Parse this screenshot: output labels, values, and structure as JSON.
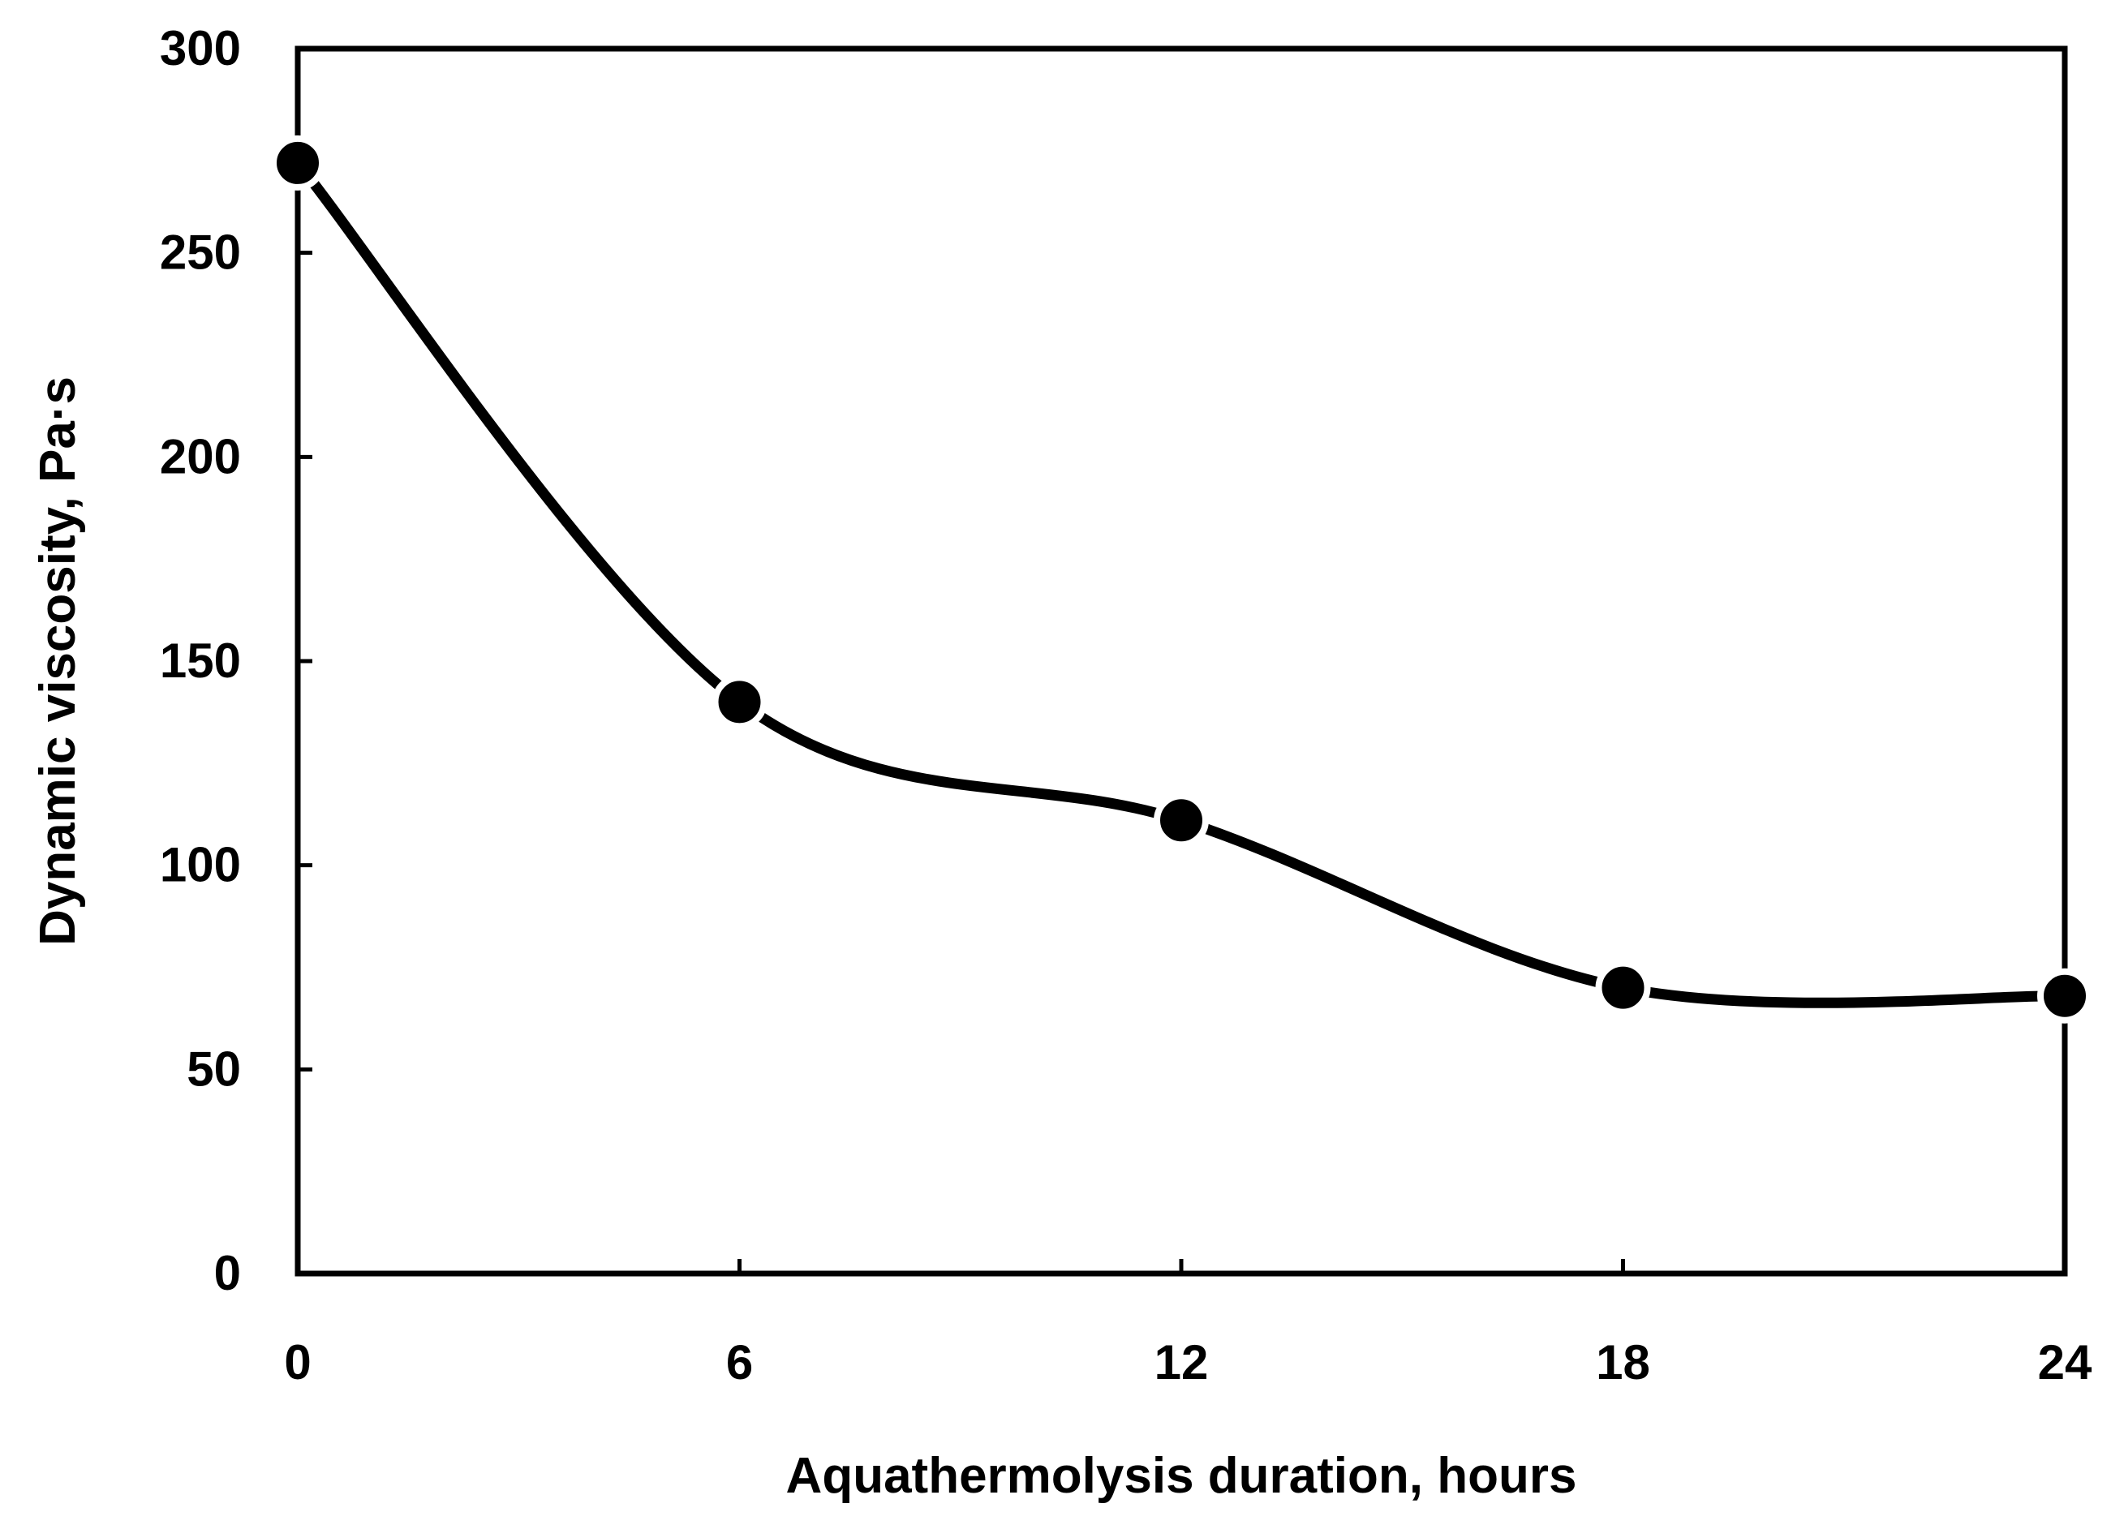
{
  "chart_data": {
    "type": "line",
    "title": "",
    "xlabel": "Aquathermolysis duration, hours",
    "ylabel": "Dynamic viscosity, Pa·s",
    "x": [
      0,
      6,
      12,
      18,
      24
    ],
    "series": [
      {
        "values": [
          272,
          140,
          111,
          70,
          68
        ]
      }
    ],
    "xlim": [
      0,
      24
    ],
    "ylim": [
      0,
      300
    ],
    "xticks": [
      0,
      6,
      12,
      18,
      24
    ],
    "yticks": [
      0,
      50,
      100,
      150,
      200,
      250,
      300
    ],
    "xtick_labels": [
      "0",
      "6",
      "12",
      "18",
      "24"
    ],
    "ytick_labels": [
      "0",
      "50",
      "100",
      "150",
      "200",
      "250",
      "300"
    ],
    "smoothed_line": true,
    "grid": false,
    "legend": "none",
    "colors": {
      "line": "#000000",
      "marker": "#000000",
      "marker_outline": "#ffffff",
      "axis": "#000000",
      "background": "#ffffff"
    }
  }
}
